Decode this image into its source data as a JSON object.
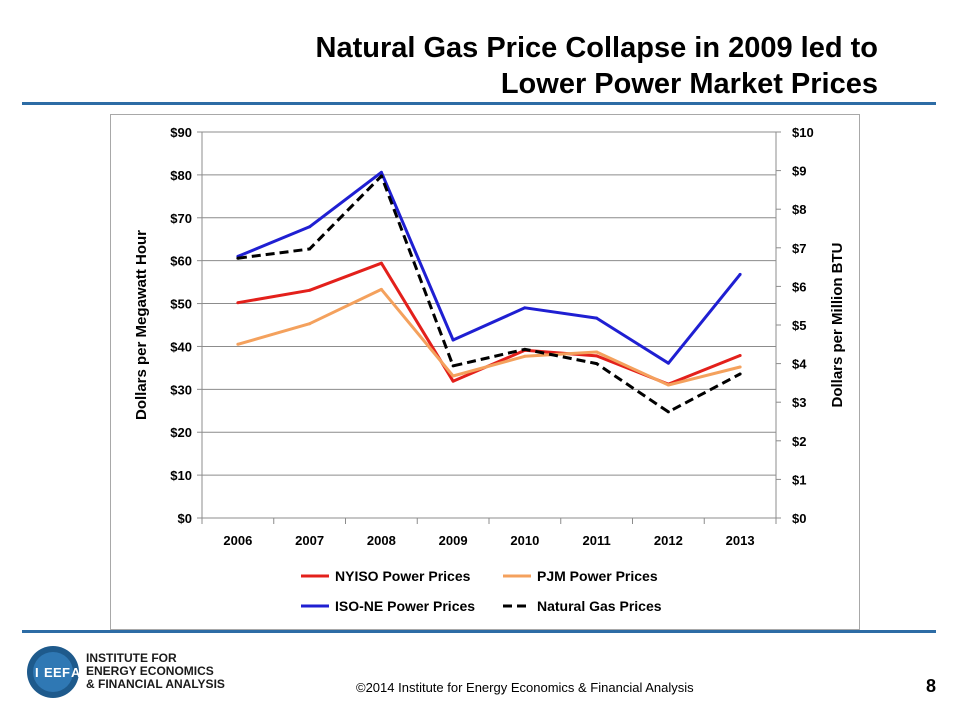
{
  "slide": {
    "title_line1": "Natural Gas Price Collapse in 2009 led to",
    "title_line2": "Lower Power Market Prices",
    "footer": "©2014 Institute for Energy Economics & Financial Analysis",
    "page_number": "8",
    "logo_letters": [
      "I",
      "E",
      "E",
      "F",
      "A"
    ],
    "logo_lines": [
      "INSTITUTE FOR",
      "ENERGY ECONOMICS",
      "& FINANCIAL ANALYSIS"
    ],
    "accent_color": "#2d6ca5"
  },
  "chart_data": {
    "type": "line",
    "title": "",
    "categories": [
      "2006",
      "2007",
      "2008",
      "2009",
      "2010",
      "2011",
      "2012",
      "2013"
    ],
    "ylabel": "Dollars per Megawatt Hour",
    "y2label": "Dollars per Million BTU",
    "ylim": [
      0,
      90
    ],
    "y2lim": [
      0,
      10
    ],
    "yticks": [
      "$0",
      "$10",
      "$20",
      "$30",
      "$40",
      "$50",
      "$60",
      "$70",
      "$80",
      "$90"
    ],
    "y2ticks": [
      "$0",
      "$1",
      "$2",
      "$3",
      "$4",
      "$5",
      "$6",
      "$7",
      "$8",
      "$9",
      "$10"
    ],
    "grid": true,
    "legend_position": "bottom",
    "series": [
      {
        "name": "NYISO Power Prices",
        "axis": "left",
        "color": "#e3201b",
        "dash": false,
        "values": [
          50.2,
          53.1,
          59.4,
          31.9,
          39.1,
          37.8,
          31.2,
          37.9
        ]
      },
      {
        "name": "PJM Power Prices",
        "axis": "left",
        "color": "#f4a15d",
        "dash": false,
        "values": [
          40.5,
          45.3,
          53.3,
          33.1,
          37.7,
          38.7,
          31.0,
          35.2
        ]
      },
      {
        "name": "ISO-NE Power Prices",
        "axis": "left",
        "color": "#1f1fd2",
        "dash": false,
        "values": [
          61.0,
          67.9,
          80.6,
          41.5,
          49.0,
          46.6,
          36.1,
          56.8
        ]
      },
      {
        "name": "Natural Gas Prices",
        "axis": "right",
        "color": "#000000",
        "dash": true,
        "values": [
          6.73,
          6.97,
          8.86,
          3.94,
          4.37,
          4.0,
          2.75,
          3.73
        ]
      }
    ]
  }
}
